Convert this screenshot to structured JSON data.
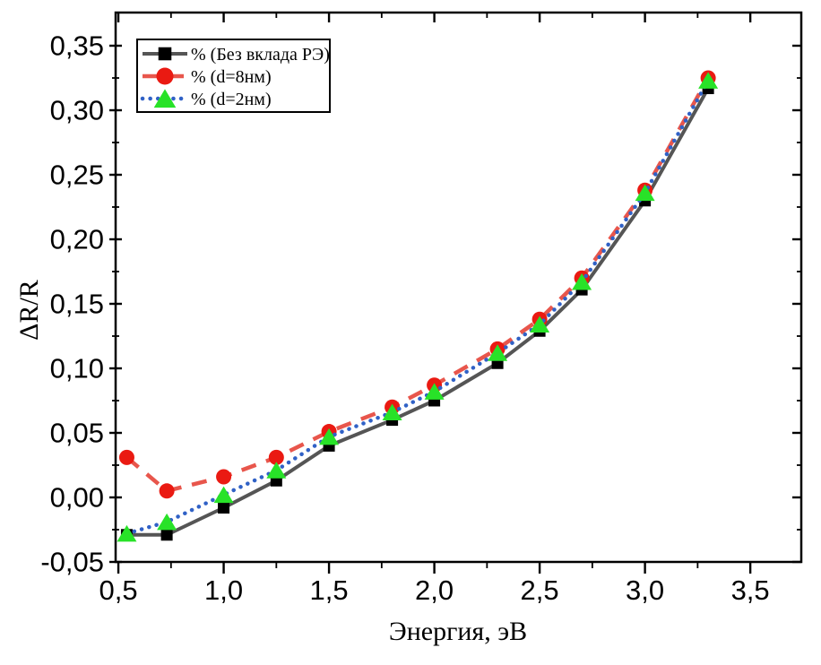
{
  "figure": {
    "background": "#ffffff",
    "frame_color": "#000000"
  },
  "chart_data": {
    "type": "line",
    "title": "",
    "xlabel": "Энергия, эВ",
    "ylabel": "ΔR/R",
    "xlim": [
      0.487,
      3.742
    ],
    "ylim": [
      -0.05,
      0.3757
    ],
    "grid": false,
    "legend_position": "top-left",
    "x": [
      0.54,
      0.73,
      1.0,
      1.25,
      1.5,
      1.8,
      2.0,
      2.3,
      2.5,
      2.7,
      3.0,
      3.3
    ],
    "series": [
      {
        "name": "% (Без вклада РЭ)",
        "marker": "square",
        "marker_color": "#000000",
        "line_color": "#555555",
        "line_style": "solid",
        "values": [
          -0.029,
          -0.029,
          -0.008,
          0.013,
          0.04,
          0.06,
          0.075,
          0.104,
          0.129,
          0.161,
          0.23,
          0.317
        ]
      },
      {
        "name": "% (d=8нм)",
        "marker": "circle",
        "marker_color": "#ea1a12",
        "line_color": "#e8564c",
        "line_style": "dashed",
        "values": [
          0.031,
          0.005,
          0.016,
          0.031,
          0.051,
          0.07,
          0.087,
          0.115,
          0.138,
          0.17,
          0.238,
          0.325
        ]
      },
      {
        "name": "% (d=2нм)",
        "marker": "triangle",
        "marker_color": "#28e228",
        "line_color": "#3061c6",
        "line_style": "dotted",
        "values": [
          -0.028,
          -0.019,
          0.002,
          0.021,
          0.047,
          0.066,
          0.082,
          0.112,
          0.134,
          0.167,
          0.236,
          0.323
        ]
      }
    ],
    "x_ticks": {
      "major": [
        0.5,
        1.0,
        1.5,
        2.0,
        2.5,
        3.0,
        3.5
      ],
      "minor": [
        0.75,
        1.25,
        1.75,
        2.25,
        2.75,
        3.25
      ],
      "labels": [
        "0,5",
        "1,0",
        "1,5",
        "2,0",
        "2,5",
        "3,0",
        "3,5"
      ]
    },
    "y_ticks": {
      "major": [
        -0.05,
        0.0,
        0.05,
        0.1,
        0.15,
        0.2,
        0.25,
        0.3,
        0.35
      ],
      "minor": [
        -0.025,
        0.025,
        0.075,
        0.125,
        0.175,
        0.225,
        0.275,
        0.325
      ],
      "labels": [
        "-0,05",
        "0,00",
        "0,05",
        "0,10",
        "0,15",
        "0,20",
        "0,25",
        "0,30",
        "0,35"
      ]
    }
  }
}
